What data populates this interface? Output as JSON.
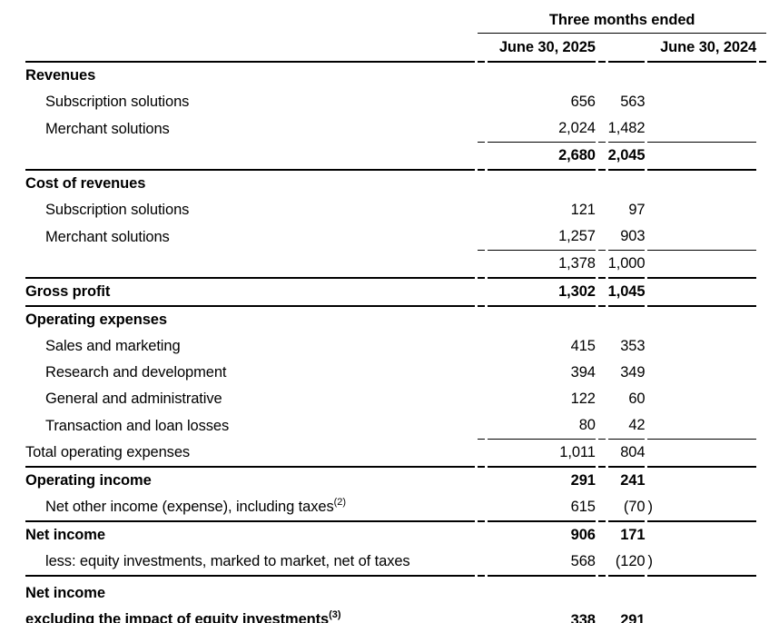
{
  "colors": {
    "text": "#000000",
    "background": "#ffffff",
    "rule": "#000000"
  },
  "table": {
    "period_header": "Three months ended",
    "columns": [
      "June 30, 2025",
      "June 30, 2024"
    ],
    "rows": [
      {
        "type": "section",
        "label": "Revenues",
        "bold": true
      },
      {
        "type": "item",
        "label": "Subscription solutions",
        "indent": true,
        "v2025": "656",
        "v2024": "563"
      },
      {
        "type": "item",
        "label": "Merchant solutions",
        "indent": true,
        "v2025": "2,024",
        "v2024": "1,482",
        "underline": "thin"
      },
      {
        "type": "subtotal",
        "label": "",
        "bold": true,
        "v2025": "2,680",
        "v2024": "2,045",
        "underline": "thick"
      },
      {
        "type": "section",
        "label": "Cost of revenues",
        "bold": true
      },
      {
        "type": "item",
        "label": "Subscription solutions",
        "indent": true,
        "v2025": "121",
        "v2024": "97"
      },
      {
        "type": "item",
        "label": "Merchant solutions",
        "indent": true,
        "v2025": "1,257",
        "v2024": "903",
        "underline": "thin"
      },
      {
        "type": "subtotal",
        "label": "",
        "v2025": "1,378",
        "v2024": "1,000",
        "underline": "thick"
      },
      {
        "type": "total",
        "label": "Gross profit",
        "bold": true,
        "v2025": "1,302",
        "v2024": "1,045",
        "underline": "thick"
      },
      {
        "type": "section",
        "label": "Operating expenses",
        "bold": true
      },
      {
        "type": "item",
        "label": "Sales and marketing",
        "indent": true,
        "v2025": "415",
        "v2024": "353"
      },
      {
        "type": "item",
        "label": "Research and development",
        "indent": true,
        "v2025": "394",
        "v2024": "349"
      },
      {
        "type": "item",
        "label": "General and administrative",
        "indent": true,
        "v2025": "122",
        "v2024": "60"
      },
      {
        "type": "item",
        "label": "Transaction and loan losses",
        "indent": true,
        "v2025": "80",
        "v2024": "42",
        "underline": "thin"
      },
      {
        "type": "plain",
        "label": "Total operating expenses",
        "v2025": "1,011",
        "v2024": "804",
        "underline": "thick"
      },
      {
        "type": "total",
        "label": "Operating income",
        "bold": true,
        "v2025": "291",
        "v2024": "241"
      },
      {
        "type": "item",
        "label": "Net other income (expense), including taxes",
        "sup": "(2)",
        "indent": true,
        "v2025": "615",
        "v2024": "(70)",
        "underline": "thick"
      },
      {
        "type": "total",
        "label": "Net income",
        "bold": true,
        "v2025": "906",
        "v2024": "171"
      },
      {
        "type": "item",
        "label": "less: equity investments, marked to market, net of taxes",
        "indent": true,
        "v2025": "568",
        "v2024": "(120)",
        "underline": "thick"
      },
      {
        "type": "total",
        "lines": [
          "Net income",
          "excluding the impact of equity investments"
        ],
        "sup": "(3)",
        "bold": true,
        "v2025": "338",
        "v2024": "291"
      }
    ]
  }
}
